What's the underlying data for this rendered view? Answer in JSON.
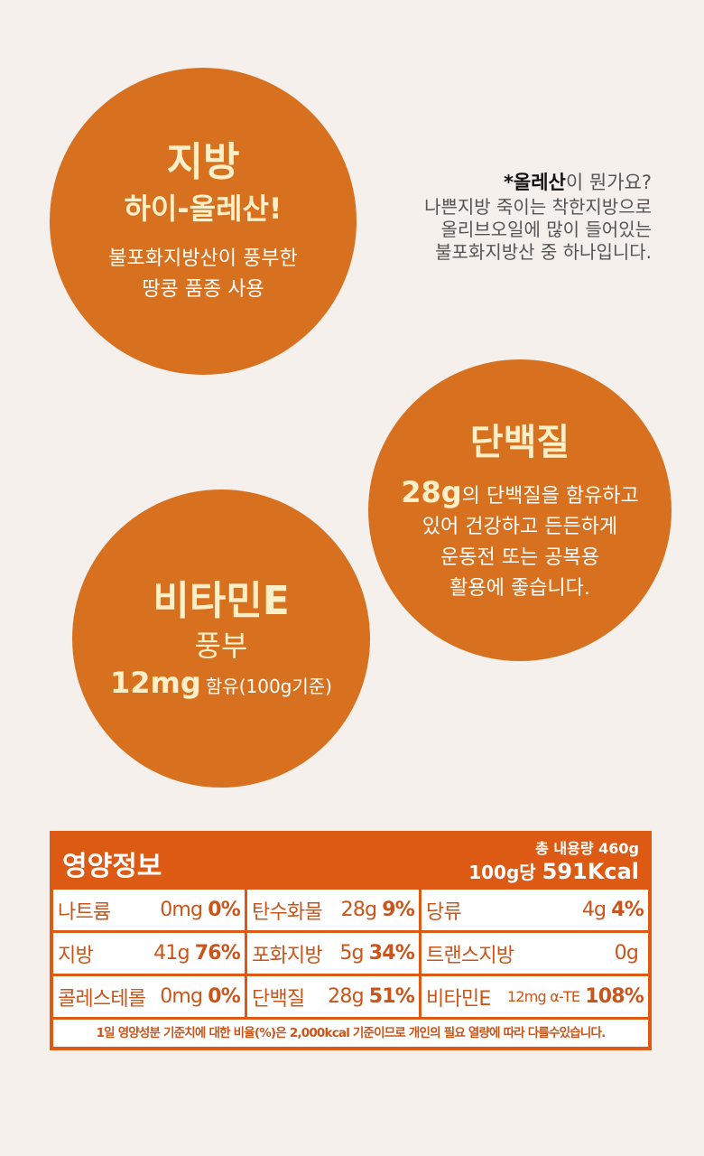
{
  "fat": {
    "title": "지방",
    "subtitle": "하이-올레산!",
    "body1": "불포화지방산이 풍부한",
    "body2": "땅콩 품종 사용"
  },
  "note": {
    "q_bold": "*올레산",
    "q_rest": "이 뭔가요?",
    "l1": "나쁜지방 죽이는 착한지방으로",
    "l2": "올리브오일에 많이 들어있는",
    "l3": "불포화지방산 중 하나입니다."
  },
  "protein": {
    "title": "단백질",
    "amount": "28g",
    "l1": "의 단백질을 함유하고",
    "l2": "있어 건강하고 든든하게",
    "l3": "운동전 또는 공복용",
    "l4": "활용에 좋습니다."
  },
  "vitamin": {
    "title": "비타민E",
    "subtitle": "풍부",
    "amount": "12mg",
    "rest": "함유(100g기준)"
  },
  "nutrition": {
    "title": "영양정보",
    "total": "총 내용량 460g",
    "per": "100g당",
    "kcal": "591Kcal",
    "rows": [
      [
        {
          "name": "나트륨",
          "amt": "0mg",
          "pct": "0%"
        },
        {
          "name": "탄수화물",
          "amt": "28g",
          "pct": "9%"
        },
        {
          "name": "당류",
          "amt": "4g",
          "pct": "4%"
        }
      ],
      [
        {
          "name": "지방",
          "amt": "41g",
          "pct": "76%"
        },
        {
          "name": "포화지방",
          "amt": "5g",
          "pct": "34%"
        },
        {
          "name": "트랜스지방",
          "amt": "0g",
          "pct": ""
        }
      ],
      [
        {
          "name": "콜레스테롤",
          "amt": "0mg",
          "pct": "0%"
        },
        {
          "name": "단백질",
          "amt": "28g",
          "pct": "51%"
        },
        {
          "name": "비타민E",
          "amt": "12mg α-TE",
          "pct": "108%"
        }
      ]
    ],
    "footnote": "1일 영양성분 기준치에 대한 비율(%)은 2,000kcal 기준이므로 개인의 필요 열량에 따라 다를수있습니다."
  },
  "colors": {
    "circle": "#d8711f",
    "table": "#dd5a14",
    "background": "#f5f0ec"
  }
}
